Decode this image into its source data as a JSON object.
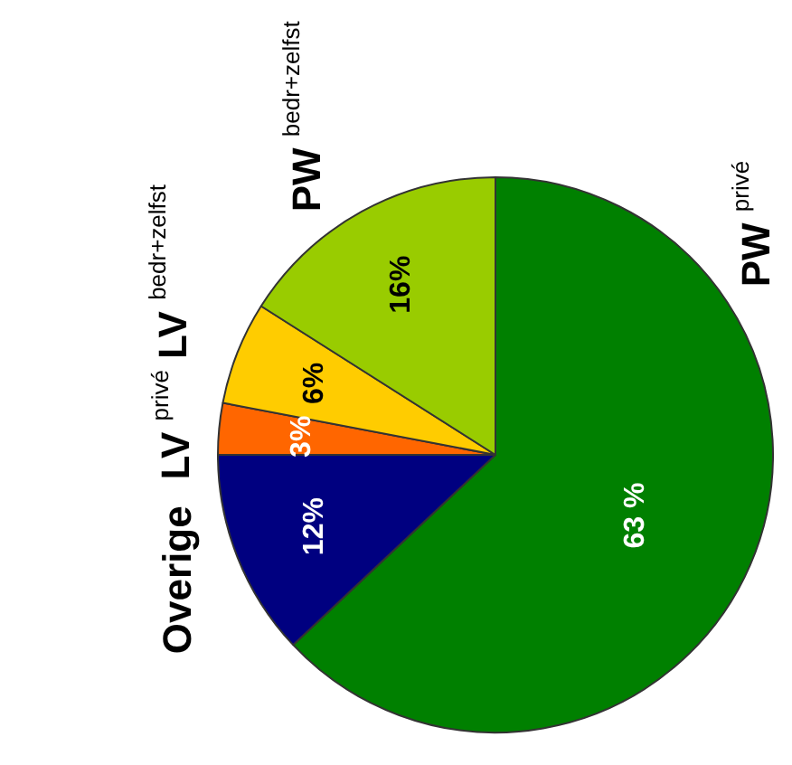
{
  "chart_data": {
    "type": "pie",
    "categories": [
      "PW $^{privé}$",
      "Overige",
      "LV $^{privé}$",
      "LV $^{bedr+zelfst}$",
      "PW $^{bedr+zelfst}$"
    ],
    "values": [
      63,
      12,
      3,
      6,
      16
    ],
    "colors": [
      "#008000",
      "#000080",
      "#ff6600",
      "#ffcc00",
      "#99cc00"
    ],
    "value_labels": [
      "63 %",
      "12%",
      "3%",
      "6%",
      "16%"
    ],
    "legend": false
  }
}
